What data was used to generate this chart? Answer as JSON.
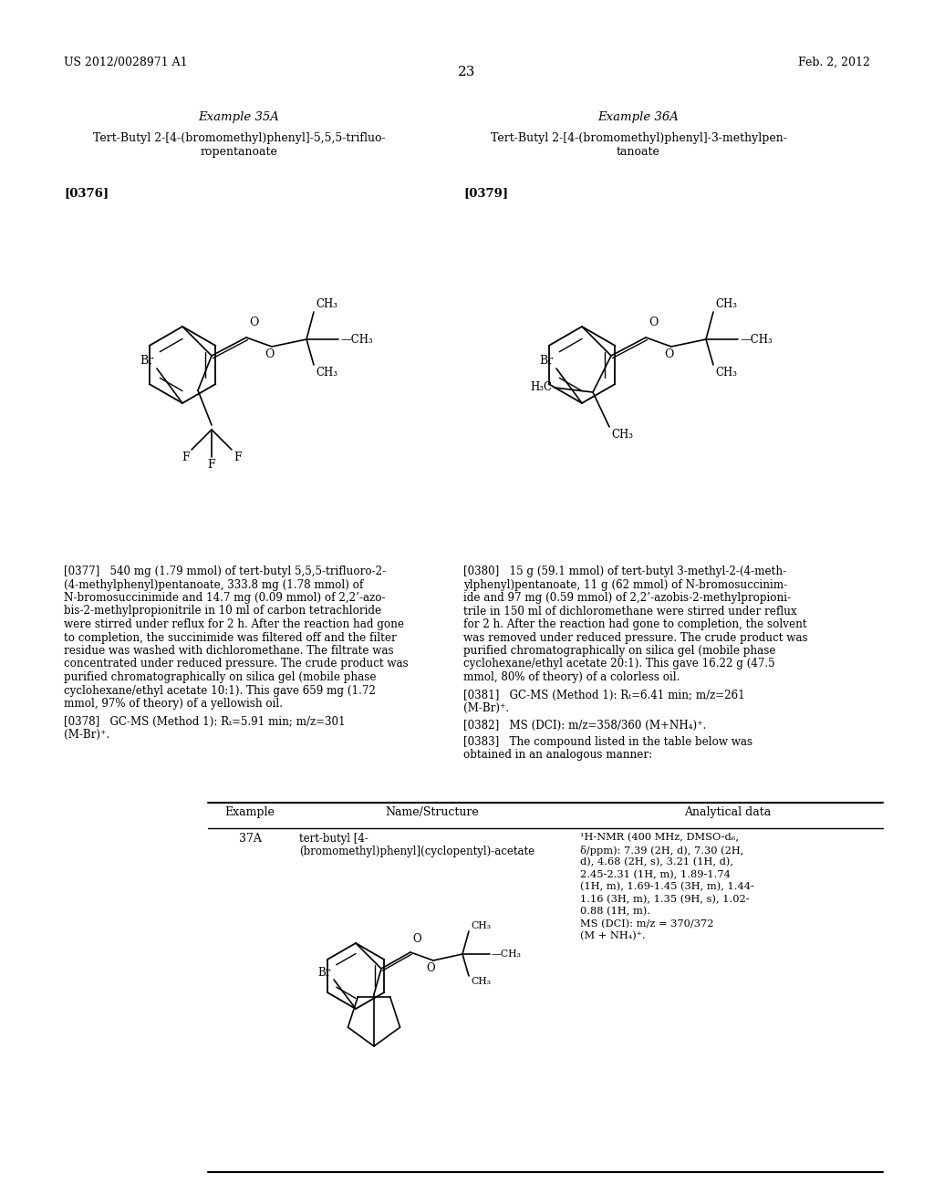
{
  "header_left": "US 2012/0028971 A1",
  "header_right": "Feb. 2, 2012",
  "page_number": "23",
  "bg_color": "#ffffff",
  "text_color": "#000000",
  "example35_title": "Example 35A",
  "example36_title": "Example 36A",
  "example35_name_line1": "Tert-Butyl 2-[4-(bromomethyl)phenyl]-5,5,5-trifluo-",
  "example35_name_line2": "ropentanoate",
  "example36_name_line1": "Tert-Butyl 2-[4-(bromomethyl)phenyl]-3-methylpen-",
  "example36_name_line2": "tanoate",
  "para376": "[0376]",
  "para379": "[0379]",
  "table_header_example": "Example",
  "table_header_name": "Name/Structure",
  "table_header_data": "Analytical data",
  "table_37a_example": "37A",
  "table_37a_name_line1": "tert-butyl [4-",
  "table_37a_name_line2": "(bromomethyl)phenyl](cyclopentyl)-acetate"
}
